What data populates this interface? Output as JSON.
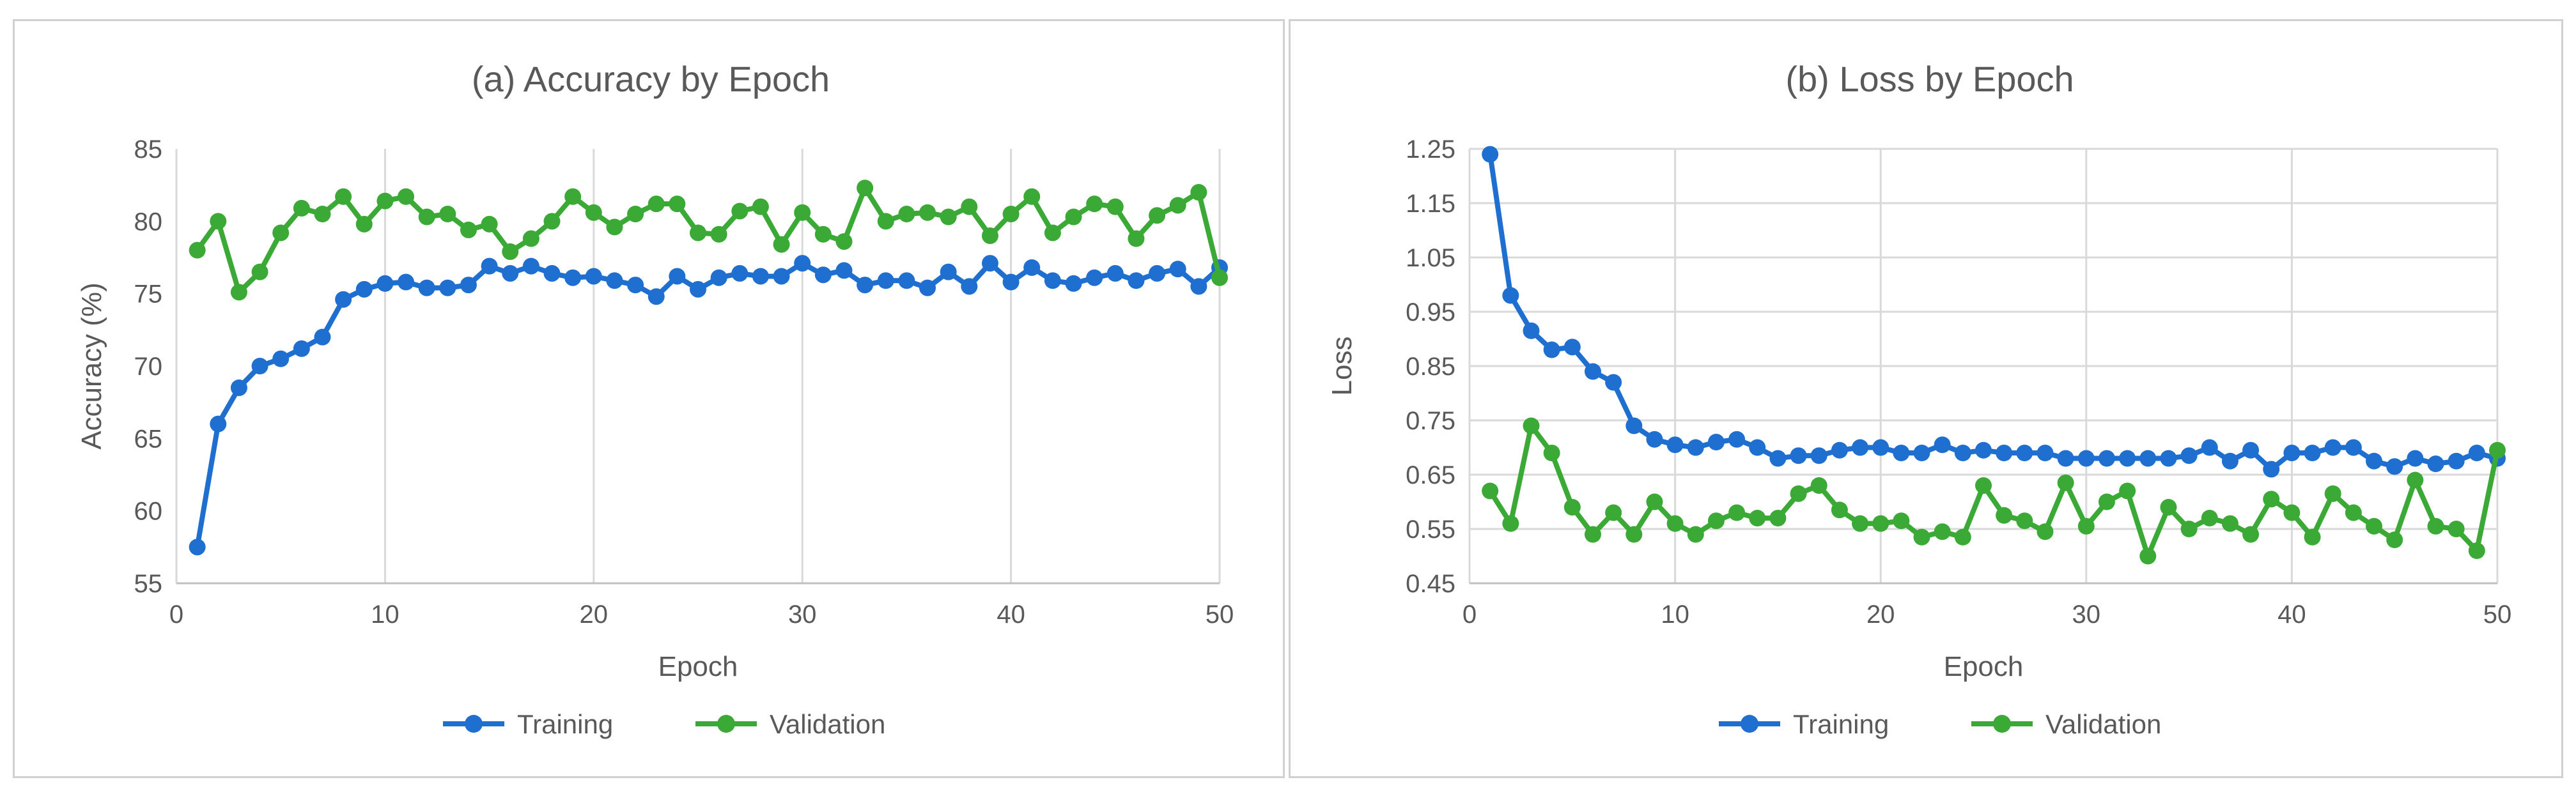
{
  "colors": {
    "training": "#1f6fd1",
    "validation": "#3aa935",
    "grid": "#d9d9d9",
    "text": "#595959"
  },
  "chart_data": [
    {
      "type": "line",
      "title": "(a) Accuracy by Epoch",
      "xlabel": "Epoch",
      "ylabel": "Accuracy (%)",
      "xlim": [
        0,
        50
      ],
      "ylim": [
        55,
        85
      ],
      "xticks": [
        0,
        10,
        20,
        30,
        40,
        50
      ],
      "yticks": [
        55,
        60,
        65,
        70,
        75,
        80,
        85
      ],
      "ytick_labels": [
        "55",
        "60",
        "65",
        "70",
        "75",
        "80",
        "85"
      ],
      "grid": "vertical",
      "legend": "bottom",
      "x": [
        1,
        2,
        3,
        4,
        5,
        6,
        7,
        8,
        9,
        10,
        11,
        12,
        13,
        14,
        15,
        16,
        17,
        18,
        19,
        20,
        21,
        22,
        23,
        24,
        25,
        26,
        27,
        28,
        29,
        30,
        31,
        32,
        33,
        34,
        35,
        36,
        37,
        38,
        39,
        40,
        41,
        42,
        43,
        44,
        45,
        46,
        47,
        48,
        49,
        50
      ],
      "series": [
        {
          "name": "Training",
          "color": "#1f6fd1",
          "values": [
            57.5,
            66.0,
            68.5,
            70.0,
            70.5,
            71.2,
            72.0,
            74.6,
            75.3,
            75.7,
            75.8,
            75.4,
            75.4,
            75.6,
            76.9,
            76.4,
            76.9,
            76.4,
            76.1,
            76.2,
            75.9,
            75.6,
            74.8,
            76.2,
            75.3,
            76.1,
            76.4,
            76.2,
            76.2,
            77.1,
            76.3,
            76.6,
            75.6,
            75.9,
            75.9,
            75.4,
            76.5,
            75.5,
            77.1,
            75.8,
            76.8,
            75.9,
            75.7,
            76.1,
            76.4,
            75.9,
            76.4,
            76.7,
            75.5,
            76.8
          ]
        },
        {
          "name": "Validation",
          "color": "#3aa935",
          "values": [
            78.0,
            80.0,
            75.1,
            76.5,
            79.2,
            80.9,
            80.5,
            81.7,
            79.8,
            81.4,
            81.7,
            80.3,
            80.5,
            79.4,
            79.8,
            77.9,
            78.8,
            80.0,
            81.7,
            80.6,
            79.6,
            80.5,
            81.2,
            81.2,
            79.2,
            79.1,
            80.7,
            81.0,
            78.4,
            80.6,
            79.1,
            78.6,
            82.3,
            80.0,
            80.5,
            80.6,
            80.3,
            81.0,
            79.0,
            80.5,
            81.7,
            79.2,
            80.3,
            81.2,
            81.0,
            78.8,
            80.4,
            81.1,
            82.0,
            76.1
          ]
        }
      ]
    },
    {
      "type": "line",
      "title": "(b) Loss by Epoch",
      "xlabel": "Epoch",
      "ylabel": "Loss",
      "xlim": [
        0,
        50
      ],
      "ylim": [
        0.45,
        1.25
      ],
      "xticks": [
        0,
        10,
        20,
        30,
        40,
        50
      ],
      "yticks": [
        0.45,
        0.55,
        0.65,
        0.75,
        0.85,
        0.95,
        1.05,
        1.15,
        1.25
      ],
      "ytick_labels": [
        "0.45",
        "0.55",
        "0.65",
        "0.75",
        "0.85",
        "0.95",
        "1.05",
        "1.15",
        "1.25"
      ],
      "grid": "both",
      "legend": "bottom",
      "x": [
        1,
        2,
        3,
        4,
        5,
        6,
        7,
        8,
        9,
        10,
        11,
        12,
        13,
        14,
        15,
        16,
        17,
        18,
        19,
        20,
        21,
        22,
        23,
        24,
        25,
        26,
        27,
        28,
        29,
        30,
        31,
        32,
        33,
        34,
        35,
        36,
        37,
        38,
        39,
        40,
        41,
        42,
        43,
        44,
        45,
        46,
        47,
        48,
        49,
        50
      ],
      "series": [
        {
          "name": "Training",
          "color": "#1f6fd1",
          "values": [
            1.24,
            0.98,
            0.915,
            0.88,
            0.885,
            0.84,
            0.82,
            0.74,
            0.715,
            0.705,
            0.7,
            0.71,
            0.715,
            0.7,
            0.68,
            0.685,
            0.685,
            0.695,
            0.7,
            0.7,
            0.69,
            0.69,
            0.705,
            0.69,
            0.695,
            0.69,
            0.69,
            0.69,
            0.68,
            0.68,
            0.68,
            0.68,
            0.68,
            0.68,
            0.685,
            0.7,
            0.675,
            0.695,
            0.66,
            0.69,
            0.69,
            0.7,
            0.7,
            0.675,
            0.665,
            0.68,
            0.67,
            0.675,
            0.69,
            0.68
          ]
        },
        {
          "name": "Validation",
          "color": "#3aa935",
          "values": [
            0.62,
            0.56,
            0.74,
            0.69,
            0.59,
            0.54,
            0.58,
            0.54,
            0.6,
            0.56,
            0.54,
            0.565,
            0.58,
            0.57,
            0.57,
            0.615,
            0.63,
            0.585,
            0.56,
            0.56,
            0.565,
            0.535,
            0.545,
            0.535,
            0.63,
            0.575,
            0.565,
            0.545,
            0.635,
            0.555,
            0.6,
            0.62,
            0.5,
            0.59,
            0.55,
            0.57,
            0.56,
            0.54,
            0.605,
            0.58,
            0.535,
            0.615,
            0.58,
            0.555,
            0.53,
            0.64,
            0.555,
            0.55,
            0.51,
            0.695
          ]
        }
      ]
    }
  ]
}
